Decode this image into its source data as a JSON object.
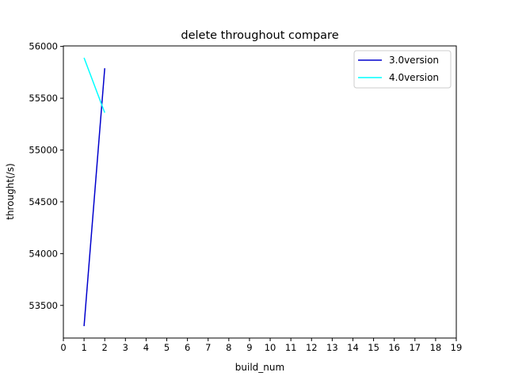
{
  "chart_data": {
    "type": "line",
    "title": "delete throughout compare",
    "xlabel": "build_num",
    "ylabel": "throught(/s)",
    "xlim": [
      0,
      19
    ],
    "ylim": [
      53185,
      56005
    ],
    "x_ticks": [
      0,
      1,
      2,
      3,
      4,
      5,
      6,
      7,
      8,
      9,
      10,
      11,
      12,
      13,
      14,
      15,
      16,
      17,
      18,
      19
    ],
    "y_ticks": [
      53500,
      54000,
      54500,
      55000,
      55500,
      56000
    ],
    "grid": false,
    "legend_position": "top-right",
    "series": [
      {
        "name": "3.0version",
        "color": "#0000cd",
        "x": [
          1,
          2
        ],
        "y": [
          53300,
          55790
        ]
      },
      {
        "name": "4.0version",
        "color": "#00ffff",
        "x": [
          1,
          2
        ],
        "y": [
          55890,
          55360
        ]
      }
    ]
  }
}
